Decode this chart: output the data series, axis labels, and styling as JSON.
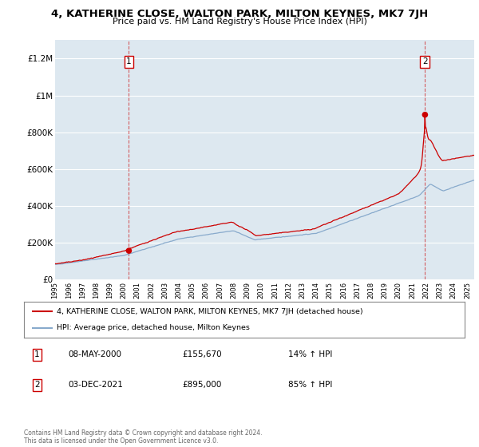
{
  "title": "4, KATHERINE CLOSE, WALTON PARK, MILTON KEYNES, MK7 7JH",
  "subtitle": "Price paid vs. HM Land Registry's House Price Index (HPI)",
  "ylim": [
    0,
    1300000
  ],
  "yticks": [
    0,
    200000,
    400000,
    600000,
    800000,
    1000000,
    1200000
  ],
  "ytick_labels": [
    "£0",
    "£200K",
    "£400K",
    "£600K",
    "£800K",
    "£1M",
    "£1.2M"
  ],
  "background_color": "#ffffff",
  "plot_bg_color": "#dde8f0",
  "grid_color": "#ffffff",
  "sale1": {
    "date_num": 2000.37,
    "price": 155670
  },
  "sale2": {
    "date_num": 2021.92,
    "price": 895000
  },
  "annotation1": {
    "date": "08-MAY-2000",
    "price": "£155,670",
    "hpi": "14% ↑ HPI"
  },
  "annotation2": {
    "date": "03-DEC-2021",
    "price": "£895,000",
    "hpi": "85% ↑ HPI"
  },
  "legend_line1": "4, KATHERINE CLOSE, WALTON PARK, MILTON KEYNES, MK7 7JH (detached house)",
  "legend_line2": "HPI: Average price, detached house, Milton Keynes",
  "footnote": "Contains HM Land Registry data © Crown copyright and database right 2024.\nThis data is licensed under the Open Government Licence v3.0.",
  "red_color": "#cc0000",
  "blue_color": "#88aacc",
  "xstart": 1995,
  "xend": 2025.5
}
